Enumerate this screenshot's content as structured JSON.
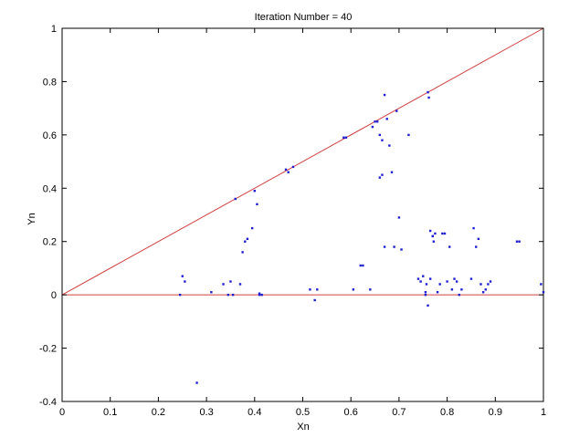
{
  "chart_data": {
    "type": "scatter",
    "title": "Iteration Number = 40",
    "xlabel": "Xn",
    "ylabel": "Yn",
    "xlim": [
      0,
      1
    ],
    "ylim": [
      -0.4,
      1
    ],
    "grid": false,
    "x_ticks": [
      "0",
      "0.1",
      "0.2",
      "0.3",
      "0.4",
      "0.5",
      "0.6",
      "0.7",
      "0.8",
      "0.9",
      "1"
    ],
    "y_ticks": [
      "-0.4",
      "-0.2",
      "0",
      "0.2",
      "0.4",
      "0.6",
      "0.8",
      "1"
    ],
    "colors": {
      "points": "#1f1fd0",
      "lines": "#d04040",
      "axes": "#000000"
    },
    "reference_lines": [
      {
        "x": [
          0,
          1
        ],
        "y": [
          0,
          1
        ]
      },
      {
        "x": [
          0,
          1
        ],
        "y": [
          0,
          0
        ]
      }
    ],
    "series": [
      {
        "x": [
          0.245,
          0.25,
          0.255,
          0.28,
          0.31,
          0.335,
          0.345,
          0.35,
          0.355,
          0.36,
          0.37,
          0.375,
          0.38,
          0.385,
          0.395,
          0.4,
          0.405,
          0.41,
          0.41,
          0.415,
          0.465,
          0.47,
          0.48,
          0.515,
          0.525,
          0.53,
          0.585,
          0.59,
          0.605,
          0.62,
          0.625,
          0.64,
          0.645,
          0.65,
          0.655,
          0.66,
          0.66,
          0.665,
          0.665,
          0.67,
          0.67,
          0.675,
          0.68,
          0.685,
          0.69,
          0.695,
          0.7,
          0.705,
          0.72,
          0.74,
          0.745,
          0.75,
          0.755,
          0.757,
          0.76,
          0.762,
          0.765,
          0.77,
          0.772,
          0.775,
          0.78,
          0.785,
          0.79,
          0.795,
          0.8,
          0.805,
          0.81,
          0.815,
          0.82,
          0.825,
          0.83,
          0.85,
          0.855,
          0.86,
          0.865,
          0.87,
          0.875,
          0.88,
          0.885,
          0.89,
          0.945,
          0.95,
          0.995,
          1.0,
          0.755,
          0.76,
          0.765,
          0.77
        ],
        "y": [
          0.0,
          0.07,
          0.05,
          -0.33,
          0.01,
          0.04,
          0.0,
          0.05,
          0.0,
          0.36,
          0.04,
          0.16,
          0.2,
          0.21,
          0.25,
          0.39,
          0.34,
          0.005,
          0.0,
          0.0,
          0.47,
          0.46,
          0.48,
          0.02,
          -0.02,
          0.02,
          0.59,
          0.59,
          0.02,
          0.11,
          0.11,
          0.02,
          0.63,
          0.65,
          0.65,
          0.44,
          0.6,
          0.58,
          0.45,
          0.75,
          0.18,
          0.66,
          0.56,
          0.46,
          0.18,
          0.69,
          0.29,
          0.17,
          0.6,
          0.06,
          0.05,
          0.07,
          0.0,
          0.04,
          0.76,
          0.74,
          0.24,
          0.22,
          0.2,
          0.23,
          0.01,
          0.04,
          0.23,
          0.23,
          0.05,
          0.18,
          0.02,
          0.06,
          0.05,
          0.0,
          0.02,
          0.06,
          0.25,
          0.18,
          0.21,
          0.04,
          0.01,
          0.02,
          0.04,
          0.05,
          0.2,
          0.2,
          0.04,
          0.01,
          0.01,
          -0.04,
          0.06,
          0.22
        ]
      }
    ]
  }
}
